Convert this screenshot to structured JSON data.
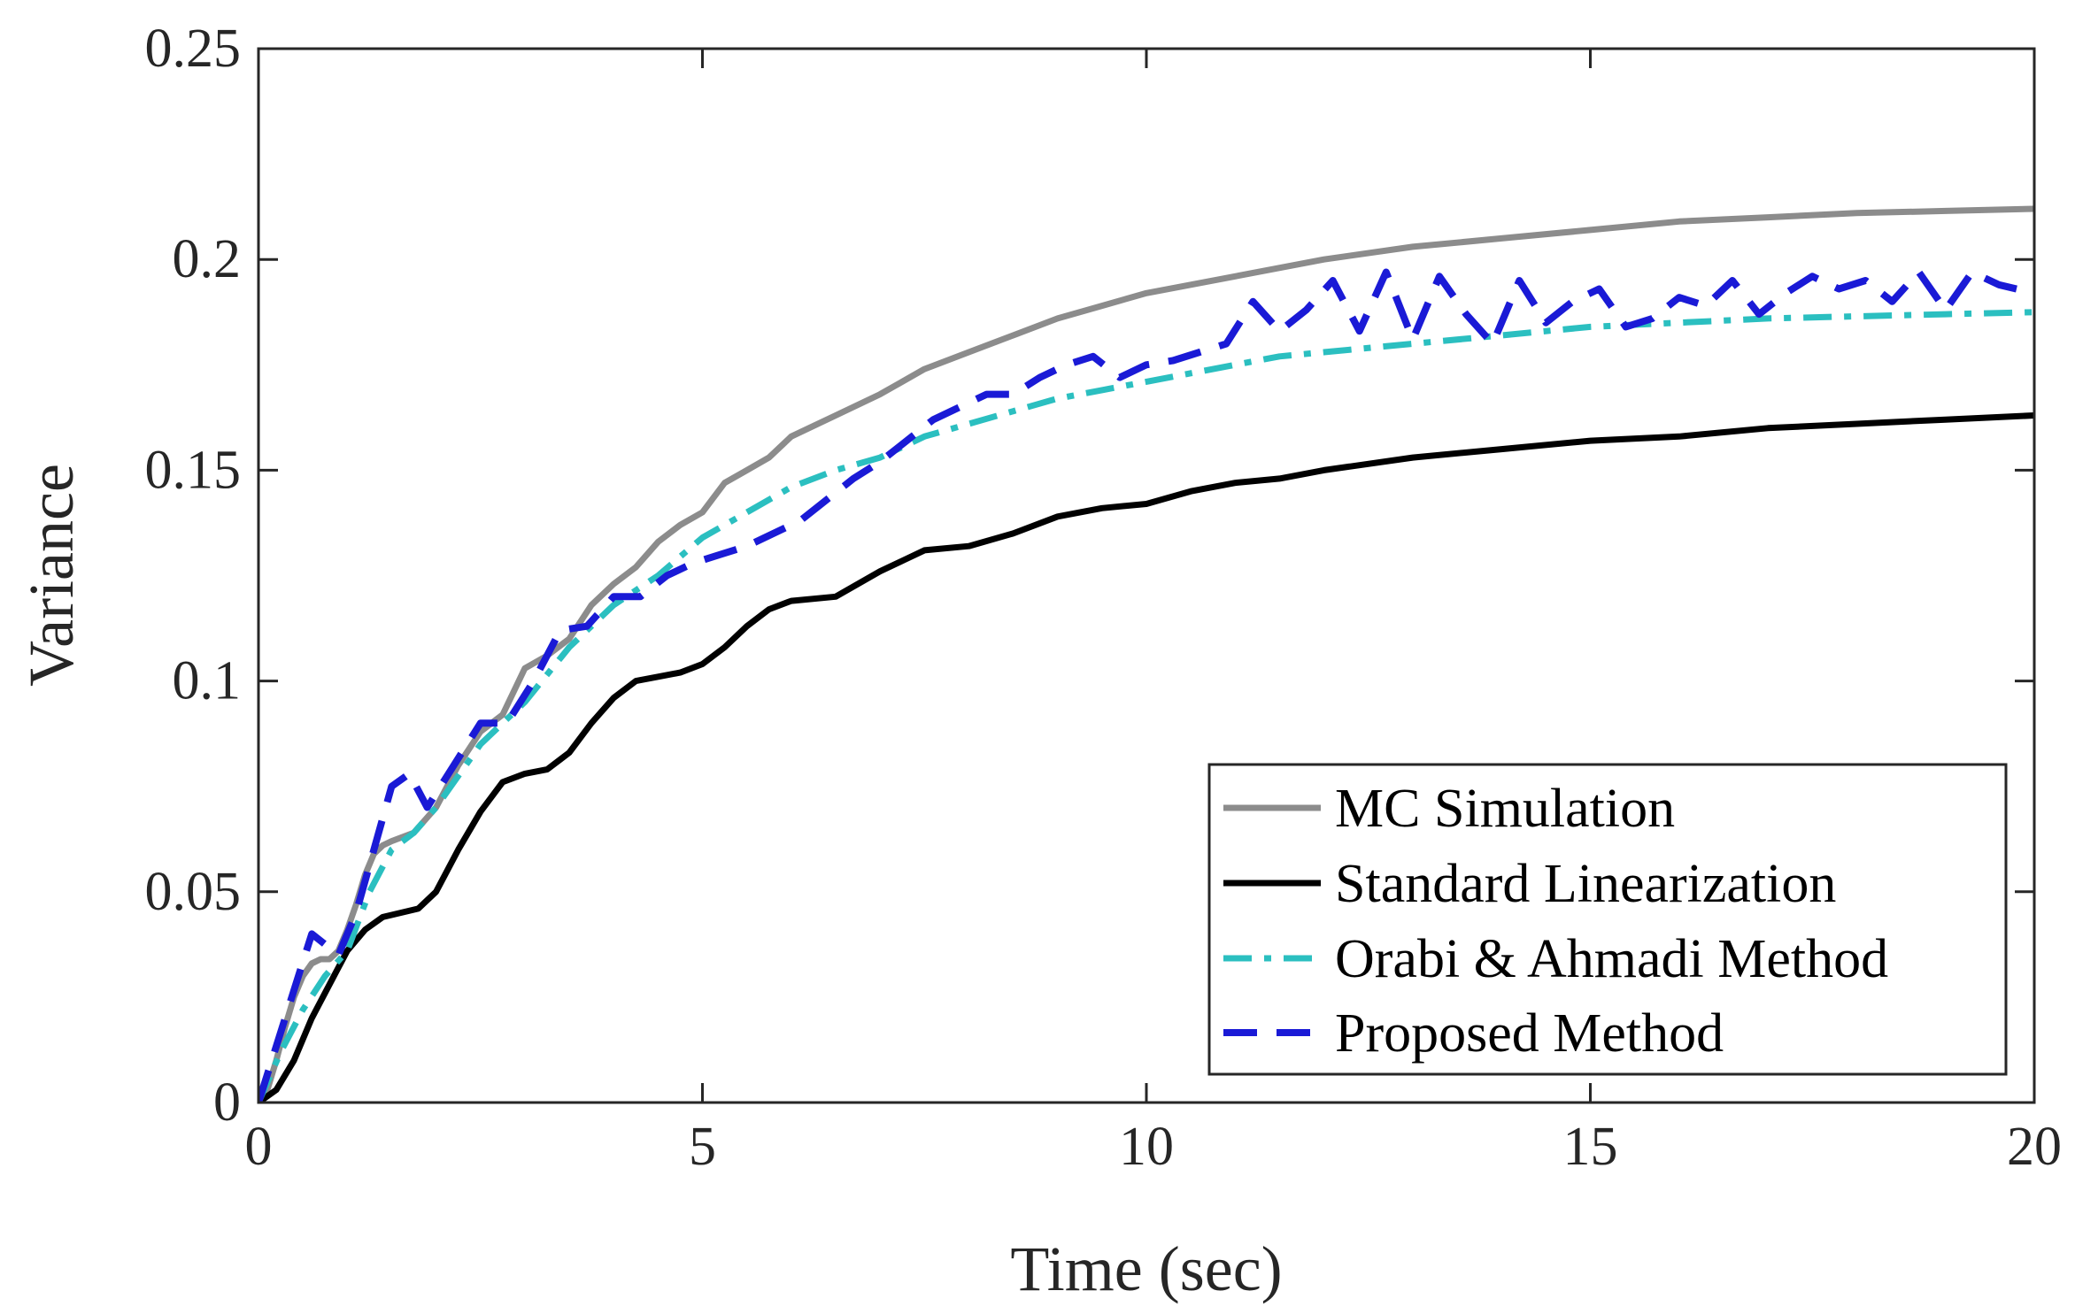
{
  "chart_data": {
    "type": "line",
    "title": "",
    "xlabel": "Time (sec)",
    "ylabel": "Variance",
    "xlim": [
      0,
      20
    ],
    "ylim": [
      0,
      0.25
    ],
    "xticks": [
      0,
      5,
      10,
      15,
      20
    ],
    "xtick_labels": [
      "0",
      "5",
      "10",
      "15",
      "20"
    ],
    "yticks": [
      0,
      0.05,
      0.1,
      0.15,
      0.2,
      0.25
    ],
    "ytick_labels": [
      "0",
      "0.05",
      "0.1",
      "0.15",
      "0.2",
      "0.25"
    ],
    "grid": false,
    "legend_position": "bottom-right",
    "series": [
      {
        "name": "MC Simulation",
        "color": "#8c8c8c",
        "style": "solid",
        "x": [
          0,
          0.1,
          0.2,
          0.3,
          0.4,
          0.5,
          0.6,
          0.7,
          0.8,
          0.9,
          1.0,
          1.1,
          1.2,
          1.3,
          1.4,
          1.5,
          1.75,
          2.0,
          2.25,
          2.5,
          2.75,
          3.0,
          3.25,
          3.5,
          3.75,
          4.0,
          4.25,
          4.5,
          4.75,
          5.0,
          5.25,
          5.5,
          5.75,
          6.0,
          6.5,
          7.0,
          7.5,
          8.0,
          8.5,
          9.0,
          9.5,
          10.0,
          11.0,
          12.0,
          13.0,
          14.0,
          15.0,
          16.0,
          17.0,
          18.0,
          19.0,
          20.0
        ],
        "y": [
          0,
          0.003,
          0.01,
          0.018,
          0.025,
          0.03,
          0.033,
          0.034,
          0.034,
          0.036,
          0.041,
          0.047,
          0.054,
          0.059,
          0.061,
          0.062,
          0.064,
          0.07,
          0.08,
          0.088,
          0.092,
          0.103,
          0.106,
          0.11,
          0.118,
          0.123,
          0.127,
          0.133,
          0.137,
          0.14,
          0.147,
          0.15,
          0.153,
          0.158,
          0.163,
          0.168,
          0.174,
          0.178,
          0.182,
          0.186,
          0.189,
          0.192,
          0.196,
          0.2,
          0.203,
          0.205,
          0.207,
          0.209,
          0.21,
          0.211,
          0.2115,
          0.212
        ]
      },
      {
        "name": "Standard Linearization",
        "color": "#000000",
        "style": "solid",
        "x": [
          0,
          0.2,
          0.4,
          0.6,
          0.8,
          1.0,
          1.2,
          1.4,
          1.6,
          1.8,
          2.0,
          2.25,
          2.5,
          2.75,
          3.0,
          3.25,
          3.5,
          3.75,
          4.0,
          4.25,
          4.5,
          4.75,
          5.0,
          5.25,
          5.5,
          5.75,
          6.0,
          6.5,
          7.0,
          7.5,
          8.0,
          8.5,
          9.0,
          9.5,
          10.0,
          10.5,
          11.0,
          11.5,
          12.0,
          13.0,
          14.0,
          15.0,
          16.0,
          17.0,
          18.0,
          19.0,
          20.0
        ],
        "y": [
          0,
          0.003,
          0.01,
          0.02,
          0.028,
          0.036,
          0.041,
          0.044,
          0.045,
          0.046,
          0.05,
          0.06,
          0.069,
          0.076,
          0.078,
          0.079,
          0.083,
          0.09,
          0.096,
          0.1,
          0.101,
          0.102,
          0.104,
          0.108,
          0.113,
          0.117,
          0.119,
          0.12,
          0.126,
          0.131,
          0.132,
          0.135,
          0.139,
          0.141,
          0.142,
          0.145,
          0.147,
          0.148,
          0.15,
          0.153,
          0.155,
          0.157,
          0.158,
          0.16,
          0.161,
          0.162,
          0.163
        ]
      },
      {
        "name": "Orabi & Ahmadi Method",
        "color": "#2bbfc0",
        "style": "dashdot",
        "x": [
          0,
          0.25,
          0.5,
          0.75,
          1.0,
          1.25,
          1.5,
          1.75,
          2.0,
          2.5,
          3.0,
          3.5,
          4.0,
          4.5,
          5.0,
          5.5,
          6.0,
          6.5,
          7.0,
          7.5,
          8.0,
          8.5,
          9.0,
          9.5,
          10.0,
          10.5,
          11.0,
          11.5,
          12.0,
          13.0,
          14.0,
          15.0,
          16.0,
          17.0,
          18.0,
          19.0,
          20.0
        ],
        "y": [
          0,
          0.012,
          0.022,
          0.03,
          0.036,
          0.05,
          0.06,
          0.064,
          0.07,
          0.085,
          0.095,
          0.108,
          0.118,
          0.125,
          0.134,
          0.14,
          0.146,
          0.15,
          0.153,
          0.158,
          0.161,
          0.164,
          0.167,
          0.169,
          0.171,
          0.173,
          0.175,
          0.177,
          0.178,
          0.18,
          0.182,
          0.184,
          0.185,
          0.186,
          0.1865,
          0.187,
          0.1875
        ]
      },
      {
        "name": "Proposed Method",
        "color": "#1a1ad6",
        "style": "dashed",
        "x": [
          0,
          0.3,
          0.6,
          0.9,
          1.1,
          1.3,
          1.5,
          1.7,
          1.9,
          2.2,
          2.5,
          2.8,
          3.1,
          3.4,
          3.7,
          4.0,
          4.3,
          4.6,
          4.9,
          5.2,
          5.5,
          5.8,
          6.1,
          6.4,
          6.7,
          7.0,
          7.3,
          7.6,
          7.9,
          8.2,
          8.5,
          8.8,
          9.1,
          9.4,
          9.7,
          10.0,
          10.3,
          10.6,
          10.9,
          11.2,
          11.5,
          11.8,
          12.1,
          12.4,
          12.7,
          13.0,
          13.3,
          13.6,
          13.9,
          14.2,
          14.5,
          14.8,
          15.1,
          15.4,
          15.7,
          16.0,
          16.3,
          16.6,
          16.9,
          17.2,
          17.5,
          17.8,
          18.1,
          18.4,
          18.7,
          19.0,
          19.3,
          19.6,
          20.0
        ],
        "y": [
          0,
          0.02,
          0.04,
          0.035,
          0.045,
          0.06,
          0.075,
          0.078,
          0.07,
          0.08,
          0.09,
          0.09,
          0.1,
          0.112,
          0.113,
          0.12,
          0.12,
          0.125,
          0.128,
          0.13,
          0.132,
          0.135,
          0.138,
          0.143,
          0.148,
          0.152,
          0.157,
          0.162,
          0.165,
          0.168,
          0.168,
          0.172,
          0.175,
          0.177,
          0.172,
          0.175,
          0.176,
          0.178,
          0.18,
          0.19,
          0.183,
          0.188,
          0.195,
          0.183,
          0.197,
          0.181,
          0.196,
          0.187,
          0.18,
          0.195,
          0.185,
          0.19,
          0.193,
          0.184,
          0.186,
          0.191,
          0.189,
          0.195,
          0.187,
          0.192,
          0.196,
          0.193,
          0.195,
          0.19,
          0.197,
          0.188,
          0.197,
          0.194,
          0.192
        ]
      }
    ]
  }
}
